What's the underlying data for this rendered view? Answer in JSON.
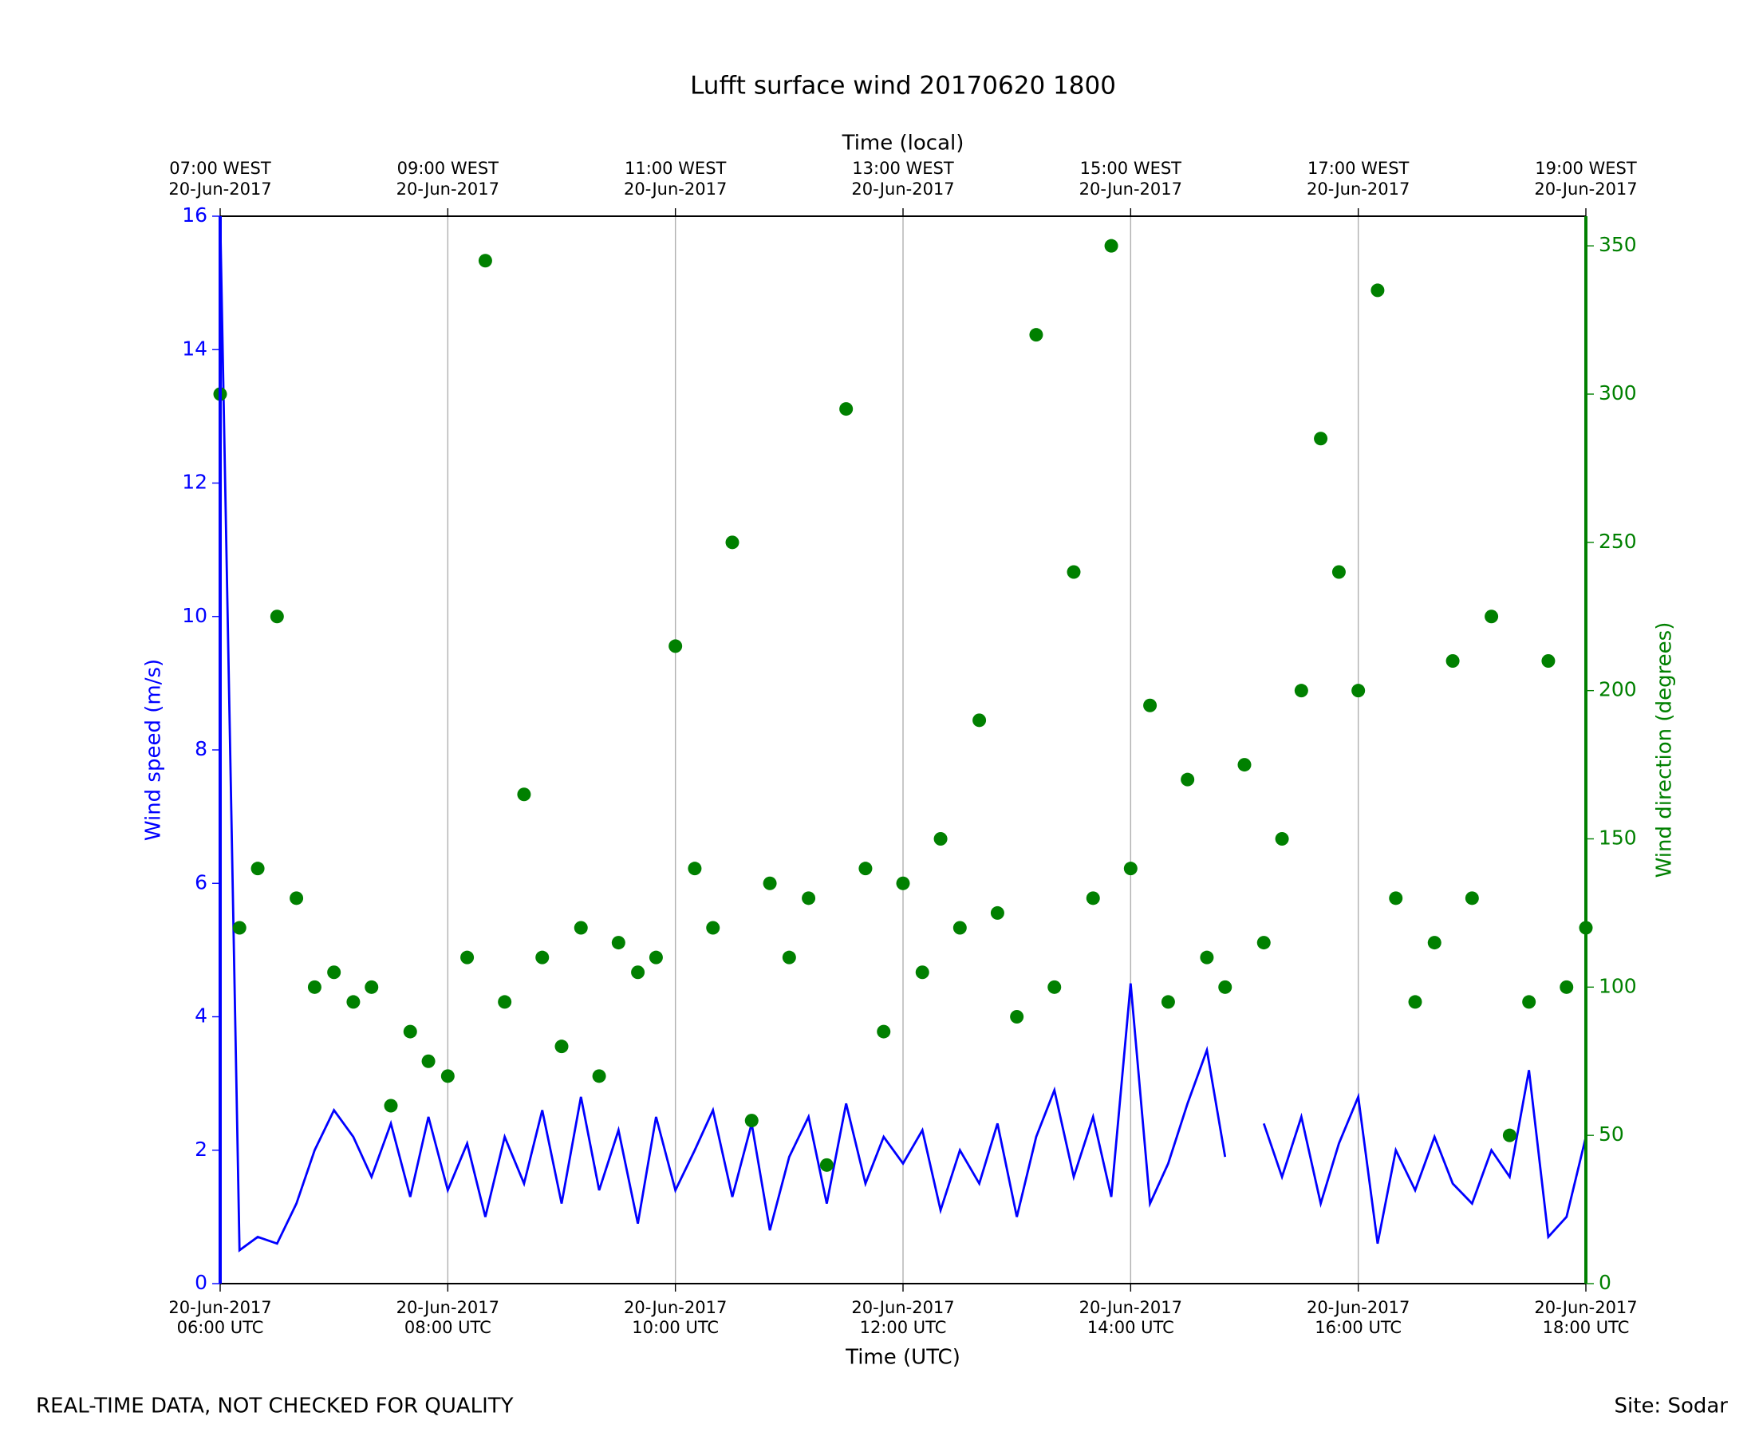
{
  "chart_data": {
    "type": "line",
    "title": "Lufft surface wind 20170620 1800",
    "xlabel": "Time (UTC)",
    "x2label": "Time (local)",
    "ylabel": "Wind speed (m/s)",
    "y2label": "Wind direction (degrees)",
    "footer_left": "REAL-TIME DATA, NOT CHECKED FOR QUALITY",
    "footer_right": "Site: Sodar",
    "xlim": [
      6,
      18
    ],
    "xticks": [
      {
        "value": 6,
        "label": "20-Jun-2017\n06:00 UTC"
      },
      {
        "value": 8,
        "label": "20-Jun-2017\n08:00 UTC"
      },
      {
        "value": 10,
        "label": "20-Jun-2017\n10:00 UTC"
      },
      {
        "value": 12,
        "label": "20-Jun-2017\n12:00 UTC"
      },
      {
        "value": 14,
        "label": "20-Jun-2017\n14:00 UTC"
      },
      {
        "value": 16,
        "label": "20-Jun-2017\n16:00 UTC"
      },
      {
        "value": 18,
        "label": "20-Jun-2017\n18:00 UTC"
      }
    ],
    "x2ticks": [
      {
        "value": 6,
        "label": "07:00 WEST\n20-Jun-2017"
      },
      {
        "value": 8,
        "label": "09:00 WEST\n20-Jun-2017"
      },
      {
        "value": 10,
        "label": "11:00 WEST\n20-Jun-2017"
      },
      {
        "value": 12,
        "label": "13:00 WEST\n20-Jun-2017"
      },
      {
        "value": 14,
        "label": "15:00 WEST\n20-Jun-2017"
      },
      {
        "value": 16,
        "label": "17:00 WEST\n20-Jun-2017"
      },
      {
        "value": 18,
        "label": "19:00 WEST\n20-Jun-2017"
      }
    ],
    "ylim": [
      0,
      16
    ],
    "yticks": [
      0,
      2,
      4,
      6,
      8,
      10,
      12,
      14,
      16
    ],
    "y2lim": [
      0,
      360
    ],
    "y2ticks": [
      0,
      50,
      100,
      150,
      200,
      250,
      300,
      350
    ],
    "grid": true,
    "x": [
      6,
      6.17,
      6.33,
      6.5,
      6.67,
      6.83,
      7,
      7.17,
      7.33,
      7.5,
      7.67,
      7.83,
      8,
      8.17,
      8.33,
      8.5,
      8.67,
      8.83,
      9,
      9.17,
      9.33,
      9.5,
      9.67,
      9.83,
      10,
      10.17,
      10.33,
      10.5,
      10.67,
      10.83,
      11,
      11.17,
      11.33,
      11.5,
      11.67,
      11.83,
      12,
      12.17,
      12.33,
      12.5,
      12.67,
      12.83,
      13,
      13.17,
      13.33,
      13.5,
      13.67,
      13.83,
      14,
      14.17,
      14.33,
      14.5,
      14.67,
      14.83,
      15,
      15.17,
      15.33,
      15.5,
      15.67,
      15.83,
      16,
      16.17,
      16.33,
      16.5,
      16.67,
      16.83,
      17,
      17.17,
      17.33,
      17.5,
      17.67,
      17.83,
      18
    ],
    "series": [
      {
        "color": "#0000ff",
        "axis": "y",
        "style": "line",
        "values": [
          16,
          0.5,
          0.7,
          0.6,
          1.2,
          2.0,
          2.6,
          2.2,
          1.6,
          2.4,
          1.3,
          2.5,
          1.4,
          2.1,
          1.0,
          2.2,
          1.5,
          2.6,
          1.2,
          2.8,
          1.4,
          2.3,
          0.9,
          2.5,
          1.4,
          2.0,
          2.6,
          1.3,
          2.4,
          0.8,
          1.9,
          2.5,
          1.2,
          2.7,
          1.5,
          2.2,
          1.8,
          2.3,
          1.1,
          2.0,
          1.5,
          2.4,
          1.0,
          2.2,
          2.9,
          1.6,
          2.5,
          1.3,
          4.5,
          1.2,
          1.8,
          2.7,
          3.5,
          1.9,
          null,
          2.4,
          1.6,
          2.5,
          1.2,
          2.1,
          2.8,
          0.6,
          2.0,
          1.4,
          2.2,
          1.5,
          1.2,
          2.0,
          1.6,
          3.2,
          0.7,
          1.0,
          2.2
        ]
      },
      {
        "color": "#008000",
        "axis": "y2",
        "style": "markers",
        "values": [
          300,
          120,
          140,
          225,
          130,
          100,
          105,
          95,
          100,
          60,
          85,
          75,
          70,
          110,
          345,
          95,
          165,
          110,
          80,
          120,
          70,
          115,
          105,
          110,
          215,
          140,
          120,
          250,
          55,
          135,
          110,
          130,
          40,
          295,
          140,
          85,
          135,
          105,
          150,
          120,
          190,
          125,
          90,
          320,
          100,
          240,
          130,
          350,
          140,
          195,
          95,
          170,
          110,
          100,
          175,
          115,
          150,
          200,
          285,
          240,
          200,
          335,
          130,
          95,
          115,
          210,
          130,
          225,
          50,
          95,
          210,
          100,
          120
        ]
      }
    ]
  }
}
